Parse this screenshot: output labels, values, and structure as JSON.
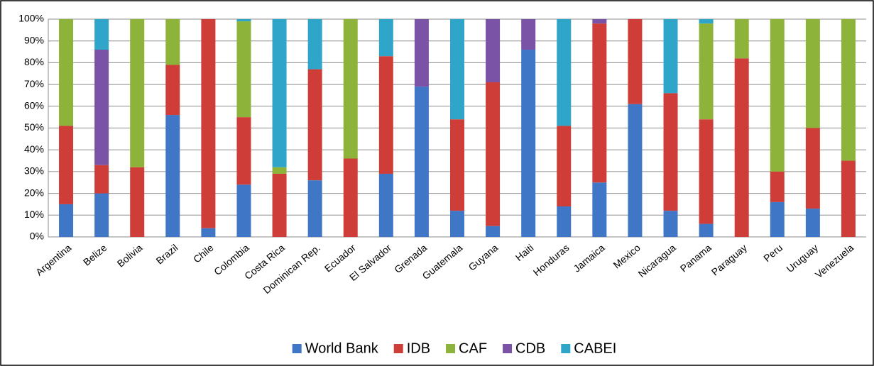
{
  "chart_data": {
    "type": "stacked_bar",
    "categories": [
      "Argentina",
      "Belize",
      "Bolivia",
      "Brazil",
      "Chile",
      "Colombia",
      "Costa Rica",
      "Dominican Rep.",
      "Ecuador",
      "El Salvador",
      "Grenada",
      "Guatemala",
      "Guyana",
      "Haiti",
      "Honduras",
      "Jamaica",
      "Mexico",
      "Nicaragua",
      "Panama",
      "Paraguay",
      "Peru",
      "Uruguay",
      "Venezuela"
    ],
    "series": [
      {
        "name": "World Bank",
        "color": "#3f76c6",
        "values": [
          15,
          20,
          0,
          56,
          4,
          24,
          0,
          26,
          0,
          29,
          69,
          12,
          5,
          86,
          14,
          25,
          61,
          12,
          6,
          0,
          16,
          13,
          0
        ]
      },
      {
        "name": "IDB",
        "color": "#cf3d38",
        "values": [
          36,
          13,
          32,
          23,
          96,
          31,
          29,
          51,
          36,
          54,
          0,
          42,
          66,
          0,
          37,
          73,
          39,
          54,
          48,
          82,
          14,
          37,
          35
        ]
      },
      {
        "name": "CAF",
        "color": "#8db33b",
        "values": [
          49,
          0,
          68,
          21,
          0,
          44,
          3,
          0,
          64,
          0,
          0,
          0,
          0,
          0,
          0,
          0,
          0,
          0,
          44,
          18,
          70,
          50,
          65
        ]
      },
      {
        "name": "CDB",
        "color": "#7a52a6",
        "values": [
          0,
          53,
          0,
          0,
          0,
          0,
          0,
          0,
          0,
          0,
          31,
          0,
          29,
          14,
          0,
          2,
          0,
          0,
          0,
          0,
          0,
          0,
          0
        ]
      },
      {
        "name": "CABEI",
        "color": "#2ea5c9",
        "values": [
          0,
          14,
          0,
          0,
          0,
          1,
          68,
          23,
          0,
          17,
          0,
          46,
          0,
          0,
          49,
          0,
          0,
          34,
          2,
          0,
          0,
          0,
          0
        ]
      }
    ],
    "ylim": [
      0,
      100
    ],
    "yticks": [
      {
        "value": 0,
        "label": "0%"
      },
      {
        "value": 10,
        "label": "10%"
      },
      {
        "value": 20,
        "label": "20%"
      },
      {
        "value": 30,
        "label": "30%"
      },
      {
        "value": 40,
        "label": "40%"
      },
      {
        "value": 50,
        "label": "50%"
      },
      {
        "value": 60,
        "label": "60%"
      },
      {
        "value": 70,
        "label": "70%"
      },
      {
        "value": 80,
        "label": "80%"
      },
      {
        "value": 90,
        "label": "90%"
      },
      {
        "value": 100,
        "label": "100%"
      }
    ],
    "grid": true,
    "legend": "bottom"
  }
}
